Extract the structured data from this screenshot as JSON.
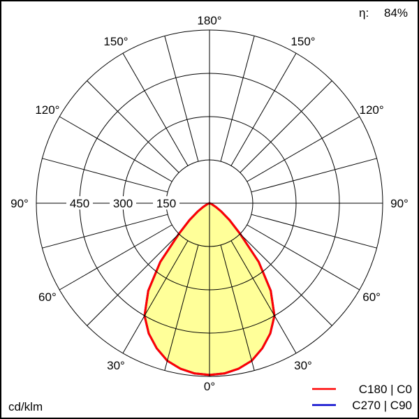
{
  "chart_data": {
    "type": "polar",
    "unit_label": "cd/klm",
    "efficiency_label": "η:",
    "efficiency_value": "84%",
    "radial_ticks": [
      150,
      300,
      450
    ],
    "radial_max": 600,
    "radial_tick_labels": [
      "150",
      "300",
      "450"
    ],
    "angle_tick_labels": [
      "0°",
      "30°",
      "60°",
      "90°",
      "120°",
      "150°",
      "180°"
    ],
    "angle_step_deg": 15,
    "fill_color": "#ffff99",
    "series": [
      {
        "name": "C180 | C0",
        "color": "#ff0000",
        "angles": [
          0,
          5,
          10,
          15,
          20,
          25,
          30,
          35,
          40,
          45,
          50,
          55,
          60,
          70,
          80,
          90
        ],
        "values": [
          595,
          592,
          582,
          565,
          535,
          498,
          450,
          370,
          265,
          150,
          90,
          50,
          25,
          6,
          1,
          0
        ]
      },
      {
        "name": "C270 | C90",
        "color": "#0000cc",
        "angles": [
          0,
          5,
          10,
          15,
          20,
          25,
          30,
          35,
          40,
          45,
          50,
          55,
          60,
          70,
          80,
          90
        ],
        "values": [
          595,
          592,
          582,
          565,
          535,
          498,
          450,
          370,
          265,
          150,
          90,
          50,
          25,
          6,
          1,
          0
        ]
      }
    ]
  }
}
